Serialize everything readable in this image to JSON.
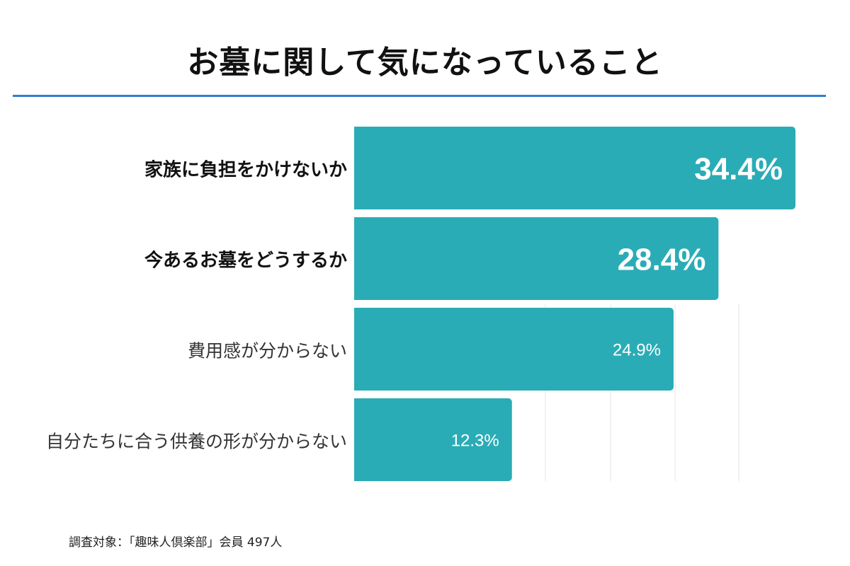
{
  "title": "お墓に関して気になっていること",
  "footnote": "調査対象：「趣味人倶楽部」会員 497人",
  "colors": {
    "bar": "#2aacb6",
    "rule": "#2f7dd1",
    "label_dark": "#111111",
    "label_light": "#333333"
  },
  "chart_data": {
    "type": "bar",
    "orientation": "horizontal",
    "categories": [
      "家族に負担をかけないか",
      "今あるお墓をどうするか",
      "費用感が分からない",
      "自分たちに合う供養の形が分からない"
    ],
    "values": [
      34.4,
      28.4,
      24.9,
      12.3
    ],
    "value_labels": [
      "34.4%",
      "28.4%",
      "24.9%",
      "12.3%"
    ],
    "emphasized": [
      true,
      true,
      false,
      false
    ],
    "xlim": [
      0,
      35
    ]
  }
}
